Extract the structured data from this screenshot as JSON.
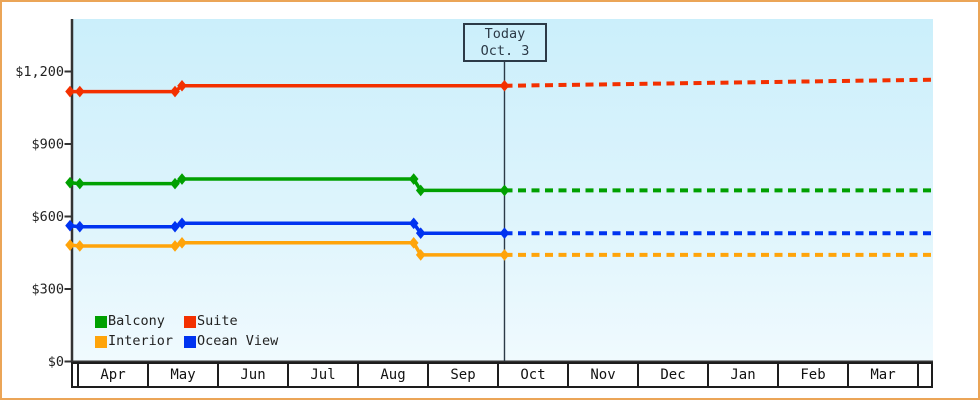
{
  "frame": {
    "border_color": "#EBA557",
    "bg": "#FFFFFF"
  },
  "chart_data": {
    "type": "line",
    "plot_bg_top": "#CBEFFB",
    "plot_bg_bottom": "#F0FAFE",
    "axis_color": "#333333",
    "text_color": "#1d1d1d",
    "today_line_color": "#2C3A47",
    "today_box": {
      "line1": "Today",
      "line2": "Oct. 3"
    },
    "x_axis": {
      "months": [
        "Apr",
        "May",
        "Jun",
        "Jul",
        "Aug",
        "Sep",
        "Oct",
        "Nov",
        "Dec",
        "Jan",
        "Feb",
        "Mar"
      ],
      "x_min": -0.11,
      "x_max": 12.21,
      "today_x": 6.107
    },
    "y_axis": {
      "ticks": [
        {
          "label": "$0",
          "value": 0
        },
        {
          "label": "$300",
          "value": 300
        },
        {
          "label": "$600",
          "value": 600
        },
        {
          "label": "$900",
          "value": 900
        },
        {
          "label": "$1,200",
          "value": 1200
        }
      ],
      "max": 1420,
      "grid": false
    },
    "legend_position": "bottom-left",
    "series": [
      {
        "name": "Balcony",
        "color": "#00A000",
        "history": [
          [
            -0.1,
            740
          ],
          [
            0.04,
            736
          ],
          [
            1.4,
            736
          ],
          [
            1.5,
            755
          ],
          [
            4.81,
            755
          ],
          [
            4.91,
            708
          ],
          [
            6.107,
            708
          ]
        ],
        "forecast": [
          [
            6.107,
            708
          ],
          [
            12.21,
            708
          ]
        ]
      },
      {
        "name": "Suite",
        "color": "#F33000",
        "history": [
          [
            -0.1,
            1117
          ],
          [
            0.04,
            1117
          ],
          [
            1.4,
            1117
          ],
          [
            1.5,
            1141
          ],
          [
            6.107,
            1141
          ]
        ],
        "forecast": [
          [
            6.107,
            1141
          ],
          [
            12.21,
            1166
          ]
        ]
      },
      {
        "name": "Interior",
        "color": "#FFA40A",
        "history": [
          [
            -0.1,
            482
          ],
          [
            0.04,
            478
          ],
          [
            1.4,
            478
          ],
          [
            1.5,
            491
          ],
          [
            4.81,
            491
          ],
          [
            4.91,
            441
          ],
          [
            6.107,
            441
          ]
        ],
        "forecast": [
          [
            6.107,
            441
          ],
          [
            12.21,
            441
          ]
        ]
      },
      {
        "name": "Ocean View",
        "color": "#0033F0",
        "history": [
          [
            -0.1,
            562
          ],
          [
            0.04,
            558
          ],
          [
            1.4,
            558
          ],
          [
            1.5,
            572
          ],
          [
            4.81,
            572
          ],
          [
            4.91,
            531
          ],
          [
            6.107,
            531
          ]
        ],
        "forecast": [
          [
            6.107,
            531
          ],
          [
            12.21,
            531
          ]
        ]
      }
    ]
  }
}
